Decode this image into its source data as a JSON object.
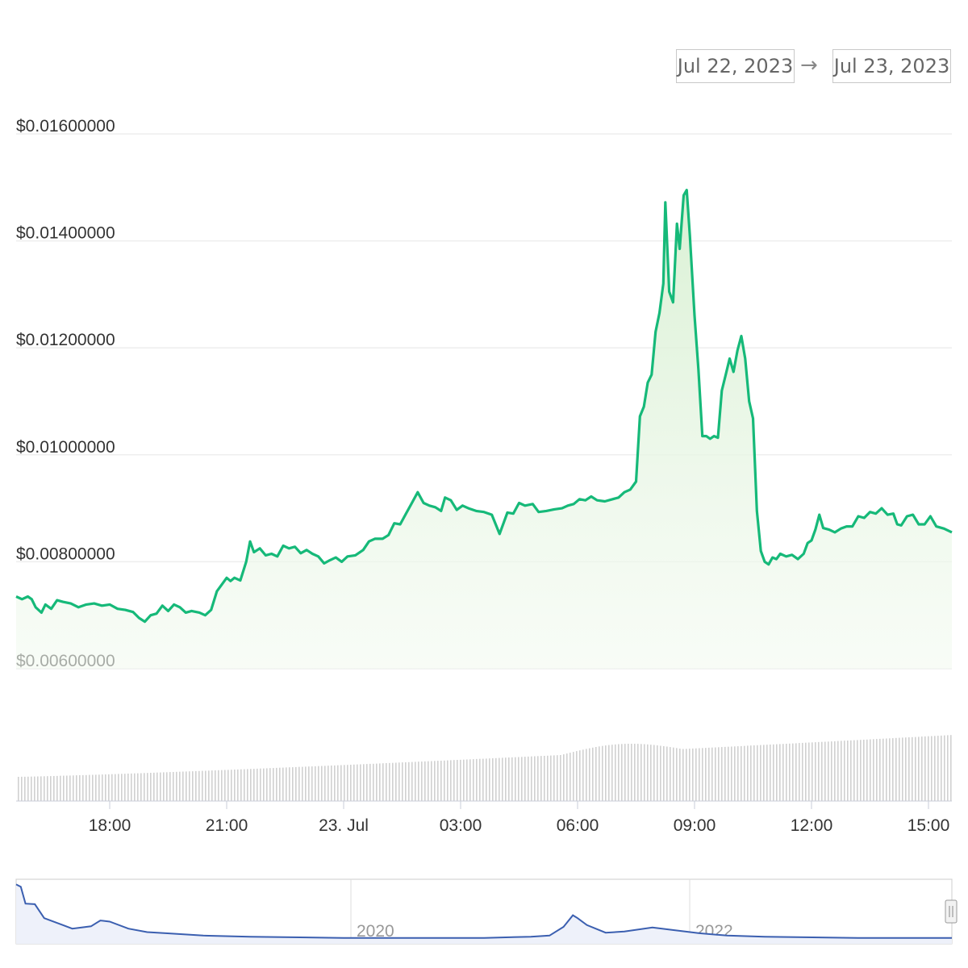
{
  "date_range": {
    "from": "Jul 22, 2023",
    "arrow": "→",
    "to": "Jul 23, 2023"
  },
  "colors": {
    "price_line": "#16b979",
    "price_fill": "#dff3d9",
    "volume_bars": "#d4d4d4",
    "navigator_line": "#3b5fb0",
    "grid": "#eeeeee",
    "axis_text": "#333333"
  },
  "chart_data": [
    {
      "type": "area",
      "ylim": [
        0.006,
        0.016
      ],
      "y_ticks": [
        "$0.01600000",
        "$0.01400000",
        "$0.01200000",
        "$0.01000000",
        "$0.00800000",
        "$0.00600000"
      ],
      "y_tick_values": [
        0.016,
        0.014,
        0.012,
        0.01,
        0.008,
        0.006
      ],
      "x_ticks": [
        "18:00",
        "21:00",
        "23. Jul",
        "03:00",
        "06:00",
        "09:00",
        "12:00",
        "15:00"
      ],
      "x_tick_hours": [
        18,
        21,
        24,
        27,
        30,
        33,
        36,
        39
      ],
      "x_range_hours": [
        15.6,
        39.6
      ],
      "grid": true,
      "points": [
        [
          15.6,
          0.00735
        ],
        [
          15.75,
          0.0073
        ],
        [
          15.9,
          0.00735
        ],
        [
          16.0,
          0.0073
        ],
        [
          16.1,
          0.00715
        ],
        [
          16.25,
          0.00705
        ],
        [
          16.35,
          0.0072
        ],
        [
          16.5,
          0.00712
        ],
        [
          16.65,
          0.00728
        ],
        [
          16.8,
          0.00725
        ],
        [
          17.0,
          0.00722
        ],
        [
          17.2,
          0.00715
        ],
        [
          17.4,
          0.0072
        ],
        [
          17.6,
          0.00722
        ],
        [
          17.8,
          0.00718
        ],
        [
          18.0,
          0.0072
        ],
        [
          18.2,
          0.00712
        ],
        [
          18.4,
          0.0071
        ],
        [
          18.6,
          0.00706
        ],
        [
          18.75,
          0.00695
        ],
        [
          18.9,
          0.00688
        ],
        [
          19.05,
          0.007
        ],
        [
          19.2,
          0.00703
        ],
        [
          19.35,
          0.00718
        ],
        [
          19.5,
          0.00708
        ],
        [
          19.65,
          0.0072
        ],
        [
          19.8,
          0.00715
        ],
        [
          19.95,
          0.00705
        ],
        [
          20.1,
          0.00708
        ],
        [
          20.3,
          0.00705
        ],
        [
          20.45,
          0.007
        ],
        [
          20.6,
          0.0071
        ],
        [
          20.75,
          0.00745
        ],
        [
          20.9,
          0.0076
        ],
        [
          21.0,
          0.0077
        ],
        [
          21.1,
          0.00764
        ],
        [
          21.2,
          0.0077
        ],
        [
          21.35,
          0.00765
        ],
        [
          21.5,
          0.008
        ],
        [
          21.6,
          0.00838
        ],
        [
          21.7,
          0.00818
        ],
        [
          21.85,
          0.00825
        ],
        [
          22.0,
          0.00812
        ],
        [
          22.15,
          0.00815
        ],
        [
          22.3,
          0.0081
        ],
        [
          22.45,
          0.0083
        ],
        [
          22.6,
          0.00825
        ],
        [
          22.75,
          0.00828
        ],
        [
          22.9,
          0.00816
        ],
        [
          23.05,
          0.00822
        ],
        [
          23.2,
          0.00815
        ],
        [
          23.35,
          0.0081
        ],
        [
          23.5,
          0.00797
        ],
        [
          23.65,
          0.00803
        ],
        [
          23.8,
          0.00808
        ],
        [
          23.95,
          0.008
        ],
        [
          24.1,
          0.0081
        ],
        [
          24.3,
          0.00812
        ],
        [
          24.5,
          0.00822
        ],
        [
          24.65,
          0.00838
        ],
        [
          24.8,
          0.00843
        ],
        [
          25.0,
          0.00843
        ],
        [
          25.15,
          0.0085
        ],
        [
          25.3,
          0.00872
        ],
        [
          25.45,
          0.0087
        ],
        [
          25.6,
          0.0089
        ],
        [
          25.75,
          0.0091
        ],
        [
          25.9,
          0.0093
        ],
        [
          26.05,
          0.0091
        ],
        [
          26.2,
          0.00905
        ],
        [
          26.35,
          0.00902
        ],
        [
          26.5,
          0.00895
        ],
        [
          26.6,
          0.0092
        ],
        [
          26.75,
          0.00915
        ],
        [
          26.9,
          0.00897
        ],
        [
          27.05,
          0.00905
        ],
        [
          27.2,
          0.009
        ],
        [
          27.4,
          0.00895
        ],
        [
          27.6,
          0.00893
        ],
        [
          27.8,
          0.00888
        ],
        [
          28.0,
          0.00852
        ],
        [
          28.2,
          0.00892
        ],
        [
          28.35,
          0.0089
        ],
        [
          28.5,
          0.0091
        ],
        [
          28.65,
          0.00905
        ],
        [
          28.85,
          0.00908
        ],
        [
          29.0,
          0.00893
        ],
        [
          29.2,
          0.00895
        ],
        [
          29.4,
          0.00898
        ],
        [
          29.6,
          0.009
        ],
        [
          29.75,
          0.00905
        ],
        [
          29.9,
          0.00908
        ],
        [
          30.05,
          0.00917
        ],
        [
          30.2,
          0.00915
        ],
        [
          30.35,
          0.00922
        ],
        [
          30.5,
          0.00915
        ],
        [
          30.7,
          0.00913
        ],
        [
          30.9,
          0.00917
        ],
        [
          31.05,
          0.0092
        ],
        [
          31.2,
          0.0093
        ],
        [
          31.35,
          0.00935
        ],
        [
          31.5,
          0.0095
        ],
        [
          31.6,
          0.01072
        ],
        [
          31.7,
          0.0109
        ],
        [
          31.8,
          0.01135
        ],
        [
          31.9,
          0.0115
        ],
        [
          32.0,
          0.0123
        ],
        [
          32.1,
          0.01265
        ],
        [
          32.2,
          0.0132
        ],
        [
          32.25,
          0.01472
        ],
        [
          32.35,
          0.01305
        ],
        [
          32.45,
          0.01285
        ],
        [
          32.55,
          0.01432
        ],
        [
          32.62,
          0.01385
        ],
        [
          32.72,
          0.01485
        ],
        [
          32.8,
          0.01495
        ],
        [
          32.88,
          0.0141
        ],
        [
          33.0,
          0.0126
        ],
        [
          33.1,
          0.0116
        ],
        [
          33.2,
          0.01035
        ],
        [
          33.3,
          0.01035
        ],
        [
          33.4,
          0.0103
        ],
        [
          33.5,
          0.01035
        ],
        [
          33.6,
          0.01032
        ],
        [
          33.7,
          0.0112
        ],
        [
          33.8,
          0.0115
        ],
        [
          33.9,
          0.0118
        ],
        [
          34.0,
          0.01155
        ],
        [
          34.1,
          0.01195
        ],
        [
          34.2,
          0.01222
        ],
        [
          34.3,
          0.0118
        ],
        [
          34.4,
          0.011
        ],
        [
          34.5,
          0.01068
        ],
        [
          34.6,
          0.00895
        ],
        [
          34.7,
          0.0082
        ],
        [
          34.8,
          0.008
        ],
        [
          34.9,
          0.00795
        ],
        [
          35.0,
          0.00808
        ],
        [
          35.1,
          0.00805
        ],
        [
          35.2,
          0.00815
        ],
        [
          35.35,
          0.0081
        ],
        [
          35.5,
          0.00813
        ],
        [
          35.65,
          0.00805
        ],
        [
          35.8,
          0.00815
        ],
        [
          35.9,
          0.00835
        ],
        [
          36.0,
          0.0084
        ],
        [
          36.1,
          0.0086
        ],
        [
          36.2,
          0.00888
        ],
        [
          36.3,
          0.00863
        ],
        [
          36.45,
          0.0086
        ],
        [
          36.6,
          0.00855
        ],
        [
          36.75,
          0.00862
        ],
        [
          36.9,
          0.00866
        ],
        [
          37.05,
          0.00866
        ],
        [
          37.2,
          0.00885
        ],
        [
          37.35,
          0.00882
        ],
        [
          37.5,
          0.00893
        ],
        [
          37.65,
          0.0089
        ],
        [
          37.8,
          0.009
        ],
        [
          37.95,
          0.00888
        ],
        [
          38.1,
          0.0089
        ],
        [
          38.2,
          0.0087
        ],
        [
          38.3,
          0.00868
        ],
        [
          38.45,
          0.00885
        ],
        [
          38.6,
          0.00888
        ],
        [
          38.75,
          0.0087
        ],
        [
          38.9,
          0.0087
        ],
        [
          39.05,
          0.00885
        ],
        [
          39.2,
          0.00866
        ],
        [
          39.4,
          0.00862
        ],
        [
          39.6,
          0.00855
        ]
      ],
      "series_note_hours_offset": 0
    },
    {
      "type": "bar",
      "series": [
        {
          "values": [
            2,
            2,
            2,
            2,
            2,
            2,
            2,
            2,
            2,
            2,
            2,
            2,
            2,
            2,
            2,
            2,
            2,
            2,
            2,
            2,
            2,
            2,
            2,
            2,
            2,
            2,
            2,
            2,
            2,
            2,
            2,
            2,
            2,
            2,
            2,
            2,
            2,
            2,
            2,
            2,
            2,
            2,
            2,
            2,
            2,
            2,
            2,
            2,
            2,
            2,
            2,
            2,
            2,
            2,
            2,
            2,
            2,
            2,
            2,
            2,
            2,
            2,
            2,
            2,
            2,
            2,
            2,
            2,
            2,
            2,
            2,
            2,
            2,
            2,
            2,
            2,
            2,
            2,
            2,
            2,
            2,
            2,
            2,
            2,
            3,
            3,
            3,
            3,
            3,
            3,
            3,
            3,
            3,
            3,
            3,
            3,
            3,
            3,
            3,
            3,
            3,
            3,
            3,
            3,
            3,
            3,
            3,
            3,
            3,
            3,
            3,
            3,
            3,
            3,
            3,
            3,
            3,
            3,
            3,
            3,
            3,
            3,
            3,
            3,
            3,
            3,
            3,
            3,
            3,
            3,
            3,
            3,
            3,
            3,
            3,
            3,
            3,
            3,
            3,
            3,
            3,
            3,
            3,
            3,
            3,
            3,
            3,
            3,
            3,
            3,
            3,
            3,
            3,
            3,
            3,
            3,
            3,
            3,
            3,
            3,
            3,
            3,
            3,
            3,
            3,
            3,
            3,
            3
          ]
        }
      ]
    },
    {
      "type": "line",
      "x_ticks": [
        "2020",
        "2022"
      ]
    }
  ]
}
